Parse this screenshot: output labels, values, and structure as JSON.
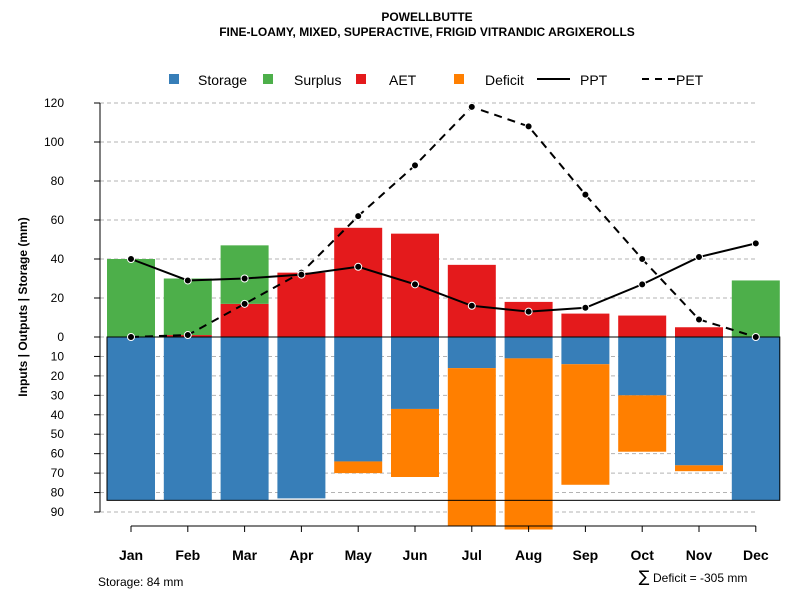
{
  "chart_data": {
    "type": "bar",
    "title": "POWELLBUTTE",
    "subtitle": "FINE-LOAMY, MIXED, SUPERACTIVE, FRIGID VITRANDIC ARGIXEROLLS",
    "ylabel": "Inputs | Outputs | Storage    (mm)",
    "xlabel": "",
    "categories": [
      "Jan",
      "Feb",
      "Mar",
      "Apr",
      "May",
      "Jun",
      "Jul",
      "Aug",
      "Sep",
      "Oct",
      "Nov",
      "Dec"
    ],
    "upper_ticks": [
      "0",
      "20",
      "40",
      "60",
      "80",
      "100",
      "120"
    ],
    "lower_ticks": [
      "10",
      "20",
      "30",
      "40",
      "50",
      "60",
      "70",
      "80",
      "90"
    ],
    "ylim_upper": [
      0,
      120
    ],
    "ylim_lower": [
      0,
      90
    ],
    "grid": true,
    "legend": [
      {
        "label": "Storage",
        "kind": "box",
        "color": "#377eb8"
      },
      {
        "label": "Surplus",
        "kind": "box",
        "color": "#4daf4a"
      },
      {
        "label": "AET",
        "kind": "box",
        "color": "#e41a1c"
      },
      {
        "label": "Deficit",
        "kind": "box",
        "color": "#ff7f00"
      },
      {
        "label": "PPT",
        "kind": "solid",
        "color": "#000000"
      },
      {
        "label": "PET",
        "kind": "dashed",
        "color": "#000000"
      }
    ],
    "legend_position": "top",
    "series": [
      {
        "name": "Surplus",
        "color": "#4daf4a",
        "values": [
          40,
          29,
          30,
          0,
          0,
          0,
          0,
          0,
          0,
          0,
          0,
          29
        ]
      },
      {
        "name": "AET",
        "color": "#e41a1c",
        "values": [
          0,
          1,
          17,
          33,
          56,
          53,
          37,
          18,
          12,
          11,
          5,
          0
        ]
      },
      {
        "name": "Storage",
        "color": "#377eb8",
        "values": [
          84,
          84,
          84,
          83,
          64,
          37,
          16,
          11,
          14,
          30,
          66,
          84
        ]
      },
      {
        "name": "Deficit",
        "color": "#ff7f00",
        "values": [
          0,
          0,
          0,
          0,
          6,
          35,
          81,
          88,
          62,
          29,
          3,
          0
        ]
      },
      {
        "name": "PPT",
        "color": "#000000",
        "style": "solid",
        "values": [
          40,
          29,
          30,
          32,
          36,
          27,
          16,
          13,
          15,
          27,
          41,
          48
        ]
      },
      {
        "name": "PET",
        "color": "#000000",
        "style": "dashed",
        "values": [
          0,
          1,
          17,
          33,
          62,
          88,
          118,
          108,
          73,
          40,
          9,
          0
        ]
      }
    ],
    "storage_capacity": 84,
    "footer_left": "Storage: 84 mm",
    "footer_right_symbol": "∑",
    "footer_right": "Deficit = -305 mm"
  }
}
